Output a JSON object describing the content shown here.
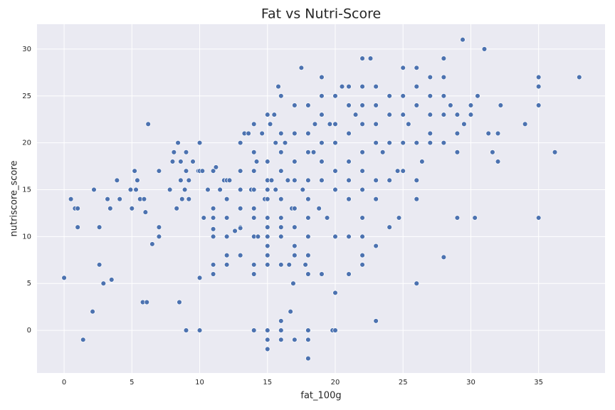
{
  "chart_data": {
    "type": "scatter",
    "title": "Fat vs Nutri-Score",
    "x_label": "fat_100g",
    "y_label": "nutriscore_score",
    "color": "#4c72b0",
    "grid": true,
    "xlim": [
      -2,
      39.9
    ],
    "ylim": [
      -4.55,
      32.65
    ],
    "xticks": [
      0,
      5,
      10,
      15,
      20,
      25,
      30,
      35
    ],
    "yticks": [
      0,
      5,
      10,
      15,
      20,
      25,
      30
    ],
    "x": [
      0,
      0.5,
      0.8,
      1,
      1,
      1.4,
      2.1,
      2.2,
      2.6,
      2.6,
      2.9,
      3.2,
      3.4,
      3.5,
      3.9,
      4.1,
      4.9,
      5,
      5.2,
      5.3,
      5.4,
      5.6,
      5.8,
      5.9,
      6,
      6.1,
      6.2,
      6.5,
      7,
      7,
      7,
      7.8,
      8,
      8.1,
      8.3,
      8.4,
      8.5,
      8.6,
      8.6,
      8.7,
      8.9,
      9,
      9,
      9,
      9.2,
      9.2,
      9.5,
      9.9,
      10,
      10,
      10,
      10,
      10.2,
      10.3,
      10.6,
      11,
      11,
      11,
      11,
      11,
      11,
      11,
      11.2,
      11.5,
      11.8,
      12,
      12,
      12,
      12,
      12,
      12,
      12.2,
      12.6,
      13,
      13,
      13,
      13,
      13,
      13,
      13,
      13.3,
      13.6,
      13.8,
      14,
      14,
      14,
      14,
      14,
      14,
      14,
      14,
      14,
      14,
      14.2,
      14.3,
      14.6,
      14.8,
      15,
      15,
      15,
      15,
      15,
      15,
      15,
      15,
      15,
      15,
      15,
      15,
      15,
      15,
      15.2,
      15.3,
      15.5,
      15.6,
      15.6,
      15.8,
      16,
      16,
      16,
      16,
      16,
      16,
      16,
      16,
      16,
      16,
      16,
      16,
      16.3,
      16.5,
      16.6,
      16.7,
      16.8,
      16.9,
      17,
      17,
      17,
      17,
      17,
      17,
      17,
      17,
      17,
      17.5,
      17.6,
      17.8,
      18,
      18,
      18,
      18,
      18,
      18,
      18,
      18,
      18,
      18,
      18,
      18,
      18.4,
      18.5,
      18.8,
      19,
      19,
      19,
      19,
      19,
      19,
      19,
      19.4,
      19.6,
      19.8,
      20,
      20,
      20,
      20,
      20,
      20,
      20,
      20,
      20.5,
      21,
      21,
      21,
      21,
      21,
      21,
      21,
      21,
      21.5,
      22,
      22,
      22,
      22,
      22,
      22,
      22,
      22,
      22,
      22,
      22,
      22.6,
      23,
      23,
      23,
      23,
      23,
      23,
      23,
      23,
      23.5,
      24,
      24,
      24,
      24,
      24,
      24.6,
      24.7,
      25,
      25,
      25,
      25,
      25,
      25.4,
      26,
      26,
      26,
      26,
      26,
      26,
      26,
      26.4,
      27,
      27,
      27,
      27,
      27,
      28,
      28,
      28,
      28,
      28,
      28,
      28.5,
      29,
      29,
      29,
      29,
      29.4,
      29.5,
      30,
      30,
      30.3,
      30.5,
      31,
      31.3,
      31.6,
      32,
      32,
      32.2,
      34,
      35,
      35,
      35,
      35,
      36.2,
      38
    ],
    "values": [
      5.6,
      14,
      13,
      13,
      11,
      -1,
      2,
      15,
      11,
      7,
      5,
      14,
      13,
      5.4,
      16,
      14,
      15,
      13,
      17,
      15,
      16,
      14,
      3,
      14,
      12.6,
      3,
      22,
      9.2,
      11,
      10,
      17,
      15,
      18,
      19,
      13,
      20,
      3,
      16,
      18,
      14,
      15,
      17,
      19,
      0,
      14,
      16,
      18,
      17,
      20,
      17,
      5.6,
      0,
      17,
      12,
      15,
      17,
      13,
      12,
      10.8,
      10,
      7,
      6,
      17.4,
      15,
      16,
      16,
      14,
      12,
      10,
      8,
      7,
      16,
      10.6,
      20,
      17,
      15,
      13,
      11,
      10.9,
      8,
      21,
      21,
      15,
      22,
      19,
      17,
      15,
      13,
      12,
      10,
      7,
      6,
      0,
      18,
      10,
      21,
      14,
      23,
      18,
      16,
      15,
      14,
      12,
      11,
      10,
      9,
      8,
      7,
      0,
      -1,
      -2,
      22,
      16,
      23,
      20,
      15,
      26,
      25,
      21,
      19,
      17,
      14,
      12,
      11,
      10,
      7,
      1,
      0,
      -1,
      20,
      16,
      7,
      2,
      13,
      5,
      24,
      21,
      18,
      16,
      13,
      11,
      9,
      8,
      -1,
      28,
      15,
      7,
      24,
      21,
      19,
      16,
      14,
      12,
      10,
      8,
      6,
      0,
      -1,
      -3,
      19,
      22,
      13,
      27,
      25,
      23,
      20,
      18,
      16,
      6,
      12,
      22,
      0,
      25,
      22,
      20,
      17,
      15,
      10,
      4,
      0,
      26,
      26,
      24,
      21,
      18,
      16,
      14,
      10,
      6,
      23,
      29,
      26,
      24,
      22,
      19,
      17,
      15,
      12,
      10,
      8,
      7,
      29,
      26,
      24,
      22,
      20,
      16,
      14,
      9,
      1,
      19,
      25,
      23,
      20,
      16,
      11,
      17,
      12,
      28,
      25,
      23,
      20,
      17,
      22,
      28,
      26,
      24,
      20,
      16,
      14,
      5,
      18,
      27,
      25,
      23,
      21,
      20,
      29,
      27,
      25,
      23,
      20,
      7.8,
      24,
      23,
      21,
      19,
      12,
      31,
      22,
      24,
      23,
      12,
      25,
      30,
      21,
      19,
      21,
      18,
      24,
      22,
      27,
      26,
      24,
      12,
      19,
      27
    ]
  }
}
